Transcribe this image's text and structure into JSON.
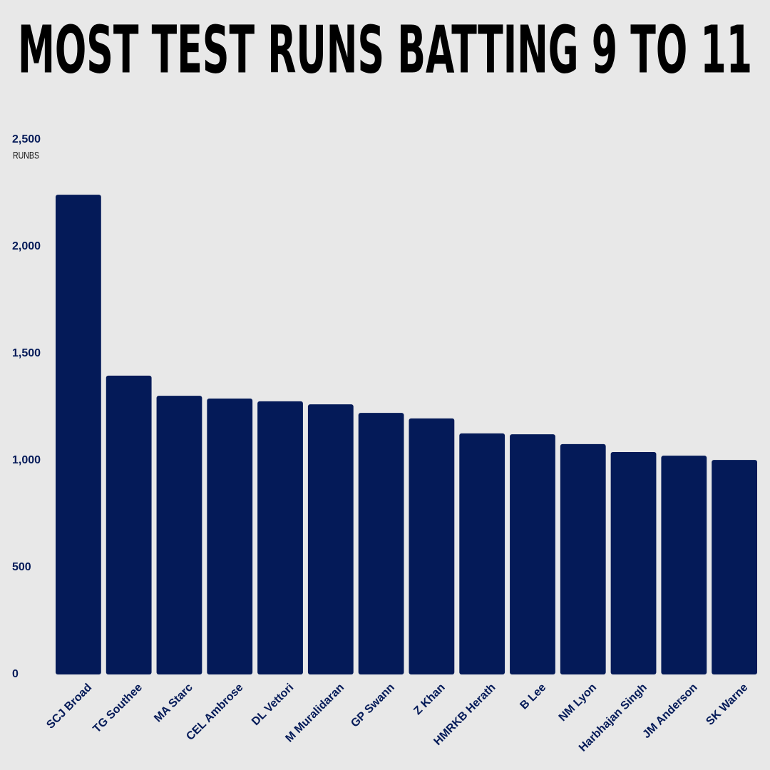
{
  "chart_data": {
    "type": "bar",
    "title": "MOST TEST RUNS BATTING 9 TO 11",
    "y_label": "RUNBS",
    "categories": [
      "SCJ Broad",
      "TG Southee",
      "MA Starc",
      "CEL Ambrose",
      "DL Vettori",
      "M Muralidaran",
      "GP Swann",
      "Z Khan",
      "HMRKB Herath",
      "B Lee",
      "NM Lyon",
      "Harbhajan Singh",
      "JM Anderson",
      "SK Warne"
    ],
    "values": [
      2243,
      1397,
      1303,
      1290,
      1277,
      1263,
      1223,
      1197,
      1127,
      1123,
      1077,
      1040,
      1023,
      1003
    ],
    "color": "#041a58",
    "ylim": [
      0,
      2500
    ],
    "yticks": [
      0,
      500,
      {
        "value": 1000,
        "label": "1,000"
      },
      {
        "value": 1500,
        "label": "1,500"
      },
      {
        "value": 2000,
        "label": "2,000"
      },
      {
        "value": 2500,
        "label": "2,500"
      }
    ],
    "grid": false
  }
}
